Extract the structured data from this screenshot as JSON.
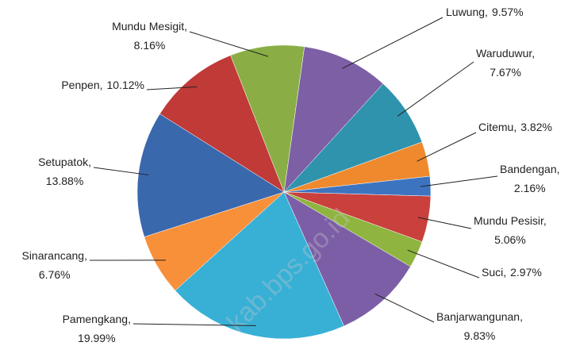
{
  "chart_data": {
    "type": "pie",
    "categories": [
      "Luwung,",
      "Waruduwur,",
      "Citemu,",
      "Bandengan,",
      "Mundu Pesisir,",
      "Suci,",
      "Banjarwangunan,",
      "Pamengkang,",
      "Sinarancang,",
      "Setupatok,",
      "Penpen,",
      "Mundu Mesigit,"
    ],
    "values": [
      9.57,
      7.67,
      3.82,
      2.16,
      5.06,
      2.97,
      9.83,
      19.99,
      6.76,
      13.88,
      10.12,
      8.16
    ],
    "value_labels": [
      "9.57%",
      "7.67%",
      "3.82%",
      "2.16%",
      "5.06%",
      "2.97%",
      "9.83%",
      "19.99%",
      "6.76%",
      "13.88%",
      "10.12%",
      "8.16%"
    ],
    "colors": [
      "#7d5fa5",
      "#2f93ae",
      "#ef892d",
      "#3d74c0",
      "#c9403c",
      "#8fb43f",
      "#7c5ea6",
      "#38b0d6",
      "#f8903a",
      "#3a68ad",
      "#c03a37",
      "#8aae45"
    ],
    "watermark": "kab.bps.go.id"
  }
}
